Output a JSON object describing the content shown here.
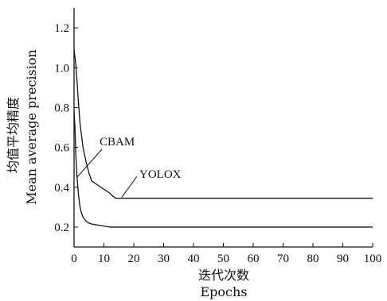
{
  "chart_data": {
    "type": "line",
    "xlabel_cn": "迭代次数",
    "xlabel_en": "Epochs",
    "ylabel_cn": "均值平均精度",
    "ylabel_en": "Mean average precision",
    "xlim": [
      0,
      100
    ],
    "ylim": [
      0.1,
      1.3
    ],
    "x_ticks": [
      0,
      10,
      20,
      30,
      40,
      50,
      60,
      70,
      80,
      90,
      100
    ],
    "y_ticks": [
      0.2,
      0.4,
      0.6,
      0.8,
      1.0,
      1.2
    ],
    "y_tick_labels": [
      "0.2",
      "0.4",
      "0.6",
      "0.8",
      "1.0",
      "1.2"
    ],
    "grid": false,
    "series": [
      {
        "name": "YOLOX",
        "x": [
          0,
          0.5,
          1,
          1.5,
          2,
          3,
          4,
          5,
          6,
          7,
          8,
          9,
          10,
          11,
          12,
          13,
          14,
          15,
          20,
          30,
          50,
          70,
          100
        ],
        "y": [
          1.09,
          1.03,
          0.93,
          0.82,
          0.72,
          0.6,
          0.53,
          0.47,
          0.43,
          0.42,
          0.41,
          0.4,
          0.39,
          0.38,
          0.37,
          0.355,
          0.345,
          0.345,
          0.345,
          0.345,
          0.345,
          0.345,
          0.345
        ]
      },
      {
        "name": "CBAM",
        "x": [
          0,
          0.3,
          0.6,
          1,
          1.5,
          2,
          2.5,
          3,
          4,
          5,
          6,
          8,
          10,
          12,
          15,
          20,
          30,
          50,
          70,
          100
        ],
        "y": [
          0.78,
          0.7,
          0.56,
          0.45,
          0.36,
          0.3,
          0.27,
          0.25,
          0.23,
          0.22,
          0.215,
          0.21,
          0.205,
          0.2,
          0.2,
          0.2,
          0.2,
          0.2,
          0.2,
          0.2
        ]
      }
    ],
    "annotations": [
      {
        "text": "CBAM",
        "series": "CBAM",
        "point": [
          1,
          0.45
        ]
      },
      {
        "text": "YOLOX",
        "series": "YOLOX",
        "point": [
          16,
          0.35
        ]
      }
    ]
  }
}
